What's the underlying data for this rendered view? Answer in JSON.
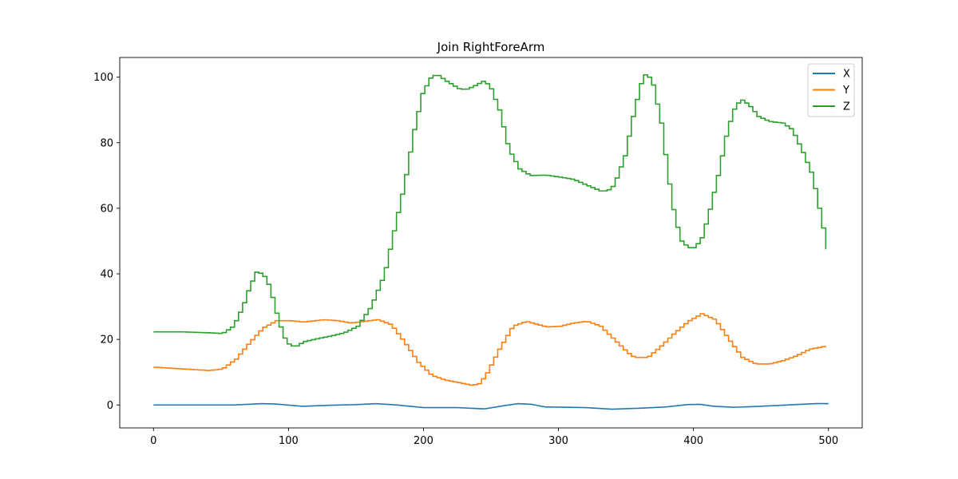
{
  "chart_data": {
    "type": "line",
    "title": "Join RightForeArm",
    "xlabel": "",
    "ylabel": "",
    "xlim": [
      -25,
      525
    ],
    "ylim": [
      -7,
      106
    ],
    "x_ticks": [
      0,
      100,
      200,
      300,
      400,
      500
    ],
    "y_ticks": [
      0,
      20,
      40,
      60,
      80,
      100
    ],
    "grid": false,
    "legend": "top-right",
    "series": [
      {
        "name": "X",
        "color": "#1f77b4",
        "points": [
          [
            0,
            0
          ],
          [
            30,
            0
          ],
          [
            60,
            0
          ],
          [
            80,
            0.4
          ],
          [
            90,
            0.3
          ],
          [
            110,
            -0.4
          ],
          [
            130,
            -0.1
          ],
          [
            150,
            0.1
          ],
          [
            165,
            0.4
          ],
          [
            180,
            0
          ],
          [
            200,
            -0.8
          ],
          [
            225,
            -0.8
          ],
          [
            245,
            -1.2
          ],
          [
            260,
            -0.2
          ],
          [
            270,
            0.4
          ],
          [
            280,
            0.2
          ],
          [
            290,
            -0.6
          ],
          [
            320,
            -0.8
          ],
          [
            340,
            -1.3
          ],
          [
            360,
            -1
          ],
          [
            380,
            -0.6
          ],
          [
            395,
            0.1
          ],
          [
            405,
            0.2
          ],
          [
            415,
            -0.4
          ],
          [
            430,
            -0.7
          ],
          [
            450,
            -0.4
          ],
          [
            470,
            0
          ],
          [
            490,
            0.4
          ],
          [
            500,
            0.4
          ]
        ]
      },
      {
        "name": "Y",
        "color": "#ff7f0e",
        "points": [
          [
            0,
            11.5
          ],
          [
            20,
            11
          ],
          [
            40,
            10.5
          ],
          [
            50,
            11
          ],
          [
            60,
            14
          ],
          [
            70,
            19
          ],
          [
            80,
            23.5
          ],
          [
            90,
            25.7
          ],
          [
            100,
            25.7
          ],
          [
            110,
            25.3
          ],
          [
            125,
            26
          ],
          [
            135,
            25.7
          ],
          [
            145,
            25
          ],
          [
            155,
            25.5
          ],
          [
            165,
            26
          ],
          [
            175,
            24.5
          ],
          [
            185,
            19
          ],
          [
            195,
            13
          ],
          [
            205,
            9
          ],
          [
            215,
            7.6
          ],
          [
            225,
            6.8
          ],
          [
            235,
            6
          ],
          [
            240,
            6.5
          ],
          [
            245,
            9
          ],
          [
            255,
            17
          ],
          [
            265,
            24
          ],
          [
            275,
            25.5
          ],
          [
            290,
            23.8
          ],
          [
            300,
            24
          ],
          [
            310,
            25
          ],
          [
            320,
            25.5
          ],
          [
            330,
            24
          ],
          [
            340,
            20
          ],
          [
            350,
            16
          ],
          [
            355,
            14.5
          ],
          [
            365,
            14.5
          ],
          [
            375,
            18
          ],
          [
            385,
            22
          ],
          [
            395,
            25.5
          ],
          [
            405,
            27.8
          ],
          [
            415,
            26
          ],
          [
            425,
            20
          ],
          [
            435,
            14.5
          ],
          [
            445,
            12.5
          ],
          [
            455,
            12.5
          ],
          [
            465,
            13.5
          ],
          [
            475,
            15
          ],
          [
            485,
            17
          ],
          [
            495,
            17.8
          ],
          [
            500,
            18
          ]
        ]
      },
      {
        "name": "Z",
        "color": "#2ca02c",
        "points": [
          [
            0,
            22.3
          ],
          [
            20,
            22.3
          ],
          [
            40,
            22
          ],
          [
            50,
            21.8
          ],
          [
            58,
            24
          ],
          [
            65,
            30
          ],
          [
            70,
            36
          ],
          [
            75,
            40.5
          ],
          [
            80,
            40
          ],
          [
            85,
            36
          ],
          [
            90,
            28
          ],
          [
            95,
            21
          ],
          [
            100,
            18
          ],
          [
            105,
            18
          ],
          [
            110,
            19.3
          ],
          [
            120,
            20.2
          ],
          [
            130,
            21
          ],
          [
            140,
            22
          ],
          [
            150,
            24
          ],
          [
            160,
            30
          ],
          [
            170,
            40
          ],
          [
            178,
            55
          ],
          [
            185,
            68
          ],
          [
            192,
            84
          ],
          [
            198,
            95
          ],
          [
            205,
            100.5
          ],
          [
            210,
            100.5
          ],
          [
            215,
            99
          ],
          [
            225,
            96.5
          ],
          [
            230,
            96.2
          ],
          [
            235,
            97
          ],
          [
            243,
            98.7
          ],
          [
            248,
            97.5
          ],
          [
            255,
            90
          ],
          [
            262,
            78
          ],
          [
            270,
            72
          ],
          [
            278,
            70
          ],
          [
            290,
            70.1
          ],
          [
            300,
            69.5
          ],
          [
            310,
            68.8
          ],
          [
            320,
            67
          ],
          [
            330,
            65.3
          ],
          [
            335,
            65.3
          ],
          [
            340,
            67
          ],
          [
            348,
            76
          ],
          [
            355,
            90
          ],
          [
            360,
            98
          ],
          [
            363,
            100.7
          ],
          [
            368,
            99.5
          ],
          [
            375,
            86
          ],
          [
            380,
            70
          ],
          [
            385,
            57
          ],
          [
            390,
            50
          ],
          [
            395,
            48
          ],
          [
            400,
            48
          ],
          [
            405,
            51
          ],
          [
            410,
            58
          ],
          [
            417,
            70
          ],
          [
            424,
            84
          ],
          [
            430,
            91.5
          ],
          [
            435,
            93
          ],
          [
            440,
            91.5
          ],
          [
            447,
            88
          ],
          [
            455,
            86.5
          ],
          [
            465,
            86
          ],
          [
            472,
            84
          ],
          [
            480,
            77
          ],
          [
            487,
            70
          ],
          [
            492,
            60
          ],
          [
            497,
            50
          ],
          [
            500,
            42.5
          ]
        ]
      }
    ]
  }
}
